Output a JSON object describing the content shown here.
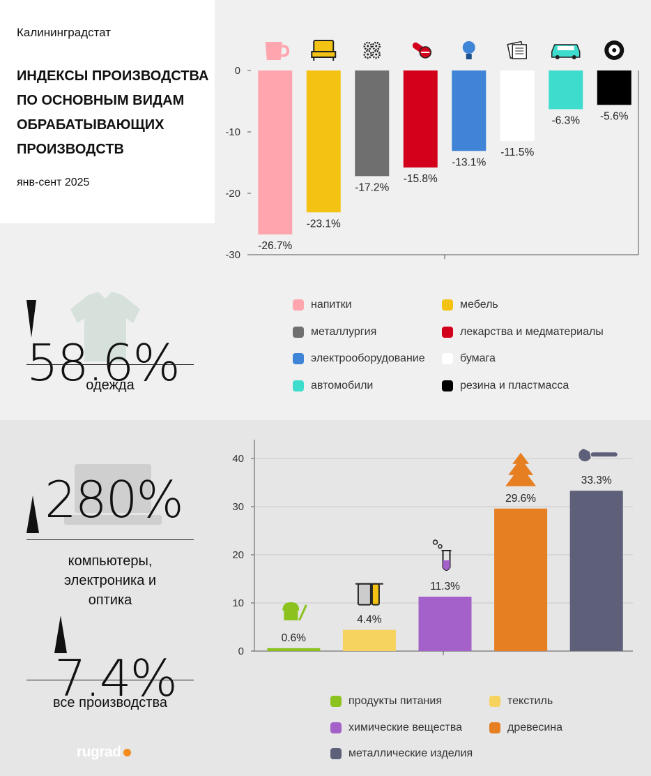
{
  "source": "Калининградстат",
  "title": "ИНДЕКСЫ ПРОИЗВОДСТВА ПО ОСНОВНЫМ ВИДАМ ОБРАБАТЫВАЮЩИХ ПРОИЗВОДСТВ",
  "period": "янв-сент 2025",
  "stats": [
    {
      "value": "58.6%",
      "direction": "down",
      "label": "одежда"
    },
    {
      "value": "280%",
      "direction": "up",
      "label": "компьютеры, электроника и оптика"
    },
    {
      "value": "7.4%",
      "direction": "up",
      "label": "все производства"
    }
  ],
  "logo": "rugrad",
  "chart_data": [
    {
      "type": "bar",
      "categories": [
        "напитки",
        "мебель",
        "металлургия",
        "лекарства и медматериалы",
        "электрооборудование",
        "бумага",
        "автомобили",
        "резина и пластмасса"
      ],
      "values": [
        -26.7,
        -23.1,
        -17.2,
        -15.8,
        -13.1,
        -11.5,
        -6.3,
        -5.6
      ],
      "data_labels": [
        "-26.7%",
        "-23.1%",
        "-17.2%",
        "-15.8%",
        "-13.1%",
        "-11.5%",
        "-6.3%",
        "-5.6%"
      ],
      "colors": [
        "#ffa5ad",
        "#f3c212",
        "#6f6f6f",
        "#d2001b",
        "#3f84d7",
        "#ffffff",
        "#3ddccd",
        "#000000"
      ],
      "icons": [
        "cup-icon",
        "armchair-icon",
        "gears-icon",
        "pills-icon",
        "lightbulb-icon",
        "paper-icon",
        "car-icon",
        "tire-icon"
      ],
      "yticks": [
        0,
        -10,
        -20,
        -30
      ],
      "ylim": [
        -30,
        0
      ],
      "grid": false,
      "legend": "bottom"
    },
    {
      "type": "bar",
      "categories": [
        "продукты питания",
        "текстиль",
        "химические вещества",
        "древесина",
        "металлические изделия"
      ],
      "values": [
        0.6,
        4.4,
        11.3,
        29.6,
        33.3
      ],
      "data_labels": [
        "0.6%",
        "4.4%",
        "11.3%",
        "29.6%",
        "33.3%"
      ],
      "colors": [
        "#8bc21e",
        "#f6d35e",
        "#a361c9",
        "#e67e22",
        "#5e6079"
      ],
      "icons": [
        "bread-icon",
        "fabric-icon",
        "flask-icon",
        "tree-icon",
        "wrench-icon"
      ],
      "yticks": [
        0,
        10,
        20,
        30,
        40
      ],
      "ylim": [
        0,
        40
      ],
      "grid": true,
      "legend": "bottom"
    }
  ]
}
